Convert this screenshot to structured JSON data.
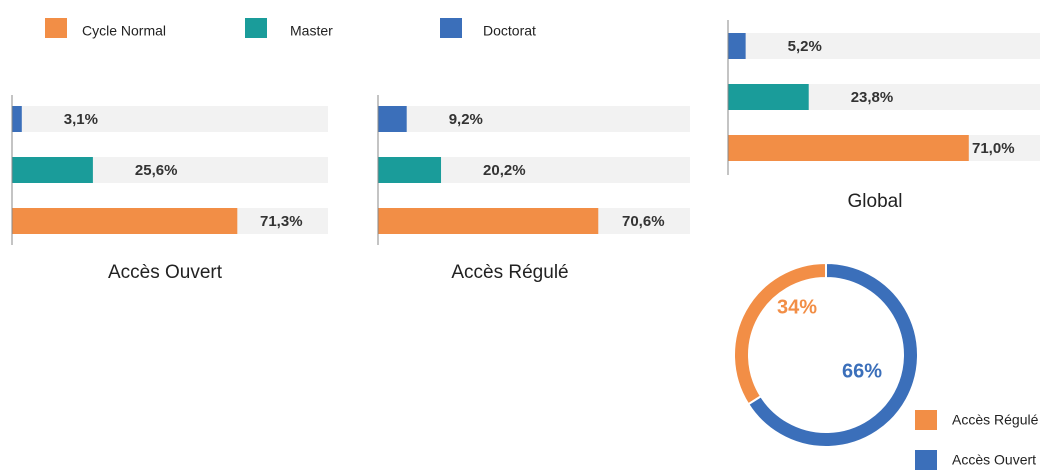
{
  "legend": [
    {
      "name": "Cycle Normal",
      "color": "#f28e46"
    },
    {
      "name": "Master",
      "color": "#1a9c9a"
    },
    {
      "name": "Doctorat",
      "color": "#3b6fba"
    }
  ],
  "chart_data": [
    {
      "type": "bar",
      "title": "Accès Ouvert",
      "values": [
        71.3,
        25.6,
        3.1
      ],
      "value_labels": [
        "71,3%",
        "25,6%",
        "3,1%"
      ],
      "xlim": [
        0,
        100
      ]
    },
    {
      "type": "bar",
      "title": "Accès Régulé",
      "values": [
        70.6,
        20.2,
        9.2
      ],
      "value_labels": [
        "70,6%",
        "20,2%",
        "9,2%"
      ],
      "xlim": [
        0,
        100
      ]
    },
    {
      "type": "bar",
      "title": "Global",
      "values": [
        71.0,
        23.8,
        5.2
      ],
      "value_labels": [
        "71,0%",
        "23,8%",
        "5,2%"
      ],
      "xlim": [
        0,
        92
      ]
    },
    {
      "type": "donut",
      "categories": [
        "Accès Régulé",
        "Accès Ouvert"
      ],
      "values": [
        34,
        66
      ],
      "value_labels": [
        "34%",
        "66%"
      ],
      "colors": [
        "#f28e46",
        "#3b6fba"
      ]
    }
  ]
}
